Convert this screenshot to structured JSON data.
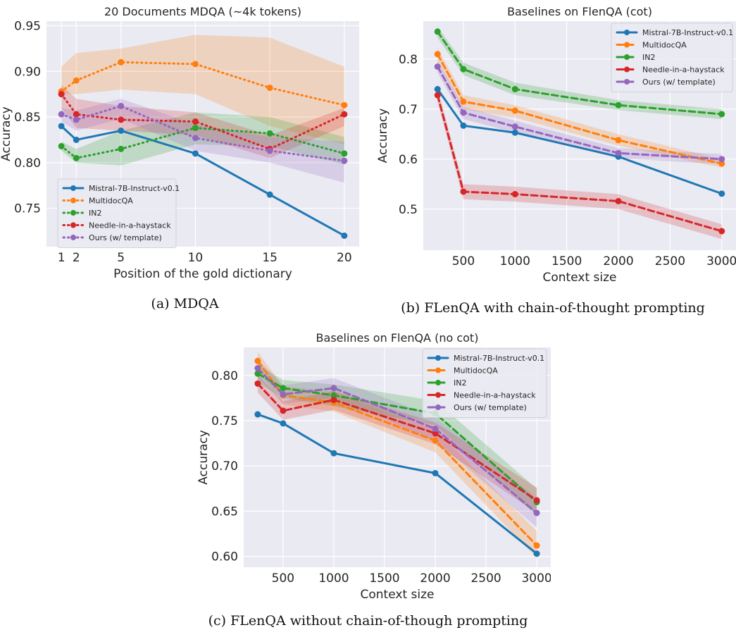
{
  "captions": {
    "a": "(a) MDQA",
    "b": "(b) FLenQA with chain-of-thought prompting",
    "c": "(c) FLenQA without chain-of-though prompting"
  },
  "series_colors": [
    "#1f77b4",
    "#ff7f0e",
    "#2ca02c",
    "#d62728",
    "#9467bd"
  ],
  "chart_data": [
    {
      "id": "a",
      "type": "line",
      "title": "20 Documents MDQA (~4k tokens)",
      "xlabel": "Position of the gold dictionary",
      "ylabel": "Accuracy",
      "x": [
        1,
        2,
        5,
        10,
        15,
        20
      ],
      "xticks": [
        1,
        2,
        5,
        10,
        15,
        20
      ],
      "xlim": [
        0,
        21
      ],
      "ylim": [
        0.708,
        0.955
      ],
      "yticks": [
        0.75,
        0.8,
        0.85,
        0.9,
        0.95
      ],
      "ytick_labels": [
        "0.75",
        "0.80",
        "0.85",
        "0.90",
        "0.95"
      ],
      "grid": true,
      "legend_position": "lower-left",
      "series": [
        {
          "name": "Mistral-7B-Instruct-v0.1",
          "style": "solid",
          "values": [
            0.84,
            0.825,
            0.835,
            0.81,
            0.765,
            0.72
          ],
          "band": null
        },
        {
          "name": "MultidocQA",
          "style": "dotted",
          "values": [
            0.878,
            0.89,
            0.91,
            0.908,
            0.882,
            0.863
          ],
          "band": {
            "lower": [
              0.875,
              0.875,
              0.88,
              0.875,
              0.84,
              0.82
            ],
            "upper": [
              0.905,
              0.92,
              0.925,
              0.94,
              0.937,
              0.905
            ]
          }
        },
        {
          "name": "IN2",
          "style": "dotted",
          "values": [
            0.818,
            0.805,
            0.815,
            0.838,
            0.832,
            0.81
          ],
          "band": {
            "lower": [
              0.813,
              0.8,
              0.797,
              0.82,
              0.818,
              0.798
            ],
            "upper": [
              0.823,
              0.815,
              0.835,
              0.855,
              0.85,
              0.828
            ]
          }
        },
        {
          "name": "Needle-in-a-haystack",
          "style": "dotted",
          "values": [
            0.875,
            0.853,
            0.847,
            0.845,
            0.815,
            0.853
          ],
          "band": {
            "lower": [
              0.86,
              0.838,
              0.835,
              0.83,
              0.805,
              0.84
            ],
            "upper": [
              0.885,
              0.87,
              0.862,
              0.855,
              0.83,
              0.86
            ]
          }
        },
        {
          "name": "Ours (w/ template)",
          "style": "dotted",
          "values": [
            0.853,
            0.847,
            0.862,
            0.827,
            0.813,
            0.802
          ],
          "band": {
            "lower": [
              0.845,
              0.835,
              0.848,
              0.813,
              0.8,
              0.778
            ],
            "upper": [
              0.86,
              0.857,
              0.87,
              0.842,
              0.828,
              0.823
            ]
          }
        }
      ]
    },
    {
      "id": "b",
      "type": "line",
      "title": "Baselines on FlenQA (cot)",
      "xlabel": "Context size",
      "ylabel": "Accuracy",
      "x": [
        250,
        500,
        1000,
        2000,
        3000
      ],
      "xticks": [
        500,
        1000,
        1500,
        2000,
        2500,
        3000
      ],
      "xlim": [
        112,
        3138
      ],
      "ylim": [
        0.418,
        0.876
      ],
      "yticks": [
        0.5,
        0.6,
        0.7,
        0.8
      ],
      "ytick_labels": [
        "0.5",
        "0.6",
        "0.7",
        "0.8"
      ],
      "grid": true,
      "legend_position": "top-right",
      "series": [
        {
          "name": "Mistral-7B-Instruct-v0.1",
          "style": "solid",
          "values": [
            0.74,
            0.667,
            0.653,
            0.605,
            0.531
          ],
          "band": null
        },
        {
          "name": "MultidocQA",
          "style": "dashed",
          "values": [
            0.81,
            0.715,
            0.697,
            0.638,
            0.591
          ],
          "band": {
            "lower": [
              0.795,
              0.7,
              0.683,
              0.627,
              0.583
            ],
            "upper": [
              0.822,
              0.728,
              0.708,
              0.65,
              0.6
            ]
          }
        },
        {
          "name": "IN2",
          "style": "dashed",
          "values": [
            0.855,
            0.78,
            0.74,
            0.708,
            0.69
          ],
          "band": {
            "lower": [
              0.843,
              0.768,
              0.728,
              0.698,
              0.68
            ],
            "upper": [
              0.865,
              0.793,
              0.753,
              0.718,
              0.7
            ]
          }
        },
        {
          "name": "Needle-in-a-haystack",
          "style": "dashed",
          "values": [
            0.728,
            0.535,
            0.53,
            0.516,
            0.456
          ],
          "band": {
            "lower": [
              0.715,
              0.52,
              0.515,
              0.5,
              0.44
            ],
            "upper": [
              0.74,
              0.55,
              0.545,
              0.53,
              0.47
            ]
          }
        },
        {
          "name": "Ours (w/ template)",
          "style": "dashed",
          "values": [
            0.785,
            0.693,
            0.665,
            0.612,
            0.6
          ],
          "band": {
            "lower": [
              0.773,
              0.68,
              0.653,
              0.602,
              0.59
            ],
            "upper": [
              0.797,
              0.705,
              0.677,
              0.622,
              0.61
            ]
          }
        }
      ]
    },
    {
      "id": "c",
      "type": "line",
      "title": "Baselines on FlenQA (no cot)",
      "xlabel": "Context size",
      "ylabel": "Accuracy",
      "x": [
        250,
        500,
        1000,
        2000,
        3000
      ],
      "xticks": [
        500,
        1000,
        1500,
        2000,
        2500,
        3000
      ],
      "xlim": [
        112,
        3138
      ],
      "ylim": [
        0.588,
        0.831
      ],
      "yticks": [
        0.6,
        0.65,
        0.7,
        0.75,
        0.8
      ],
      "ytick_labels": [
        "0.60",
        "0.65",
        "0.70",
        "0.75",
        "0.80"
      ],
      "grid": true,
      "legend_position": "top-right",
      "series": [
        {
          "name": "Mistral-7B-Instruct-v0.1",
          "style": "solid",
          "values": [
            0.757,
            0.747,
            0.714,
            0.692,
            0.603
          ],
          "band": null
        },
        {
          "name": "MultidocQA",
          "style": "dashed",
          "values": [
            0.816,
            0.778,
            0.77,
            0.728,
            0.612
          ],
          "band": {
            "lower": [
              0.806,
              0.768,
              0.76,
              0.715,
              0.598
            ],
            "upper": [
              0.826,
              0.788,
              0.782,
              0.74,
              0.628
            ]
          }
        },
        {
          "name": "IN2",
          "style": "dashed",
          "values": [
            0.802,
            0.786,
            0.778,
            0.758,
            0.66
          ],
          "band": {
            "lower": [
              0.792,
              0.775,
              0.766,
              0.745,
              0.645
            ],
            "upper": [
              0.812,
              0.795,
              0.79,
              0.772,
              0.675
            ]
          }
        },
        {
          "name": "Needle-in-a-haystack",
          "style": "dashed",
          "values": [
            0.791,
            0.761,
            0.773,
            0.736,
            0.662
          ],
          "band": {
            "lower": [
              0.781,
              0.751,
              0.762,
              0.724,
              0.648
            ],
            "upper": [
              0.801,
              0.771,
              0.783,
              0.748,
              0.676
            ]
          }
        },
        {
          "name": "Ours (w/ template)",
          "style": "dashed",
          "values": [
            0.808,
            0.779,
            0.786,
            0.741,
            0.648
          ],
          "band": {
            "lower": [
              0.798,
              0.769,
              0.775,
              0.728,
              0.632
            ],
            "upper": [
              0.818,
              0.789,
              0.797,
              0.754,
              0.664
            ]
          }
        }
      ]
    }
  ]
}
